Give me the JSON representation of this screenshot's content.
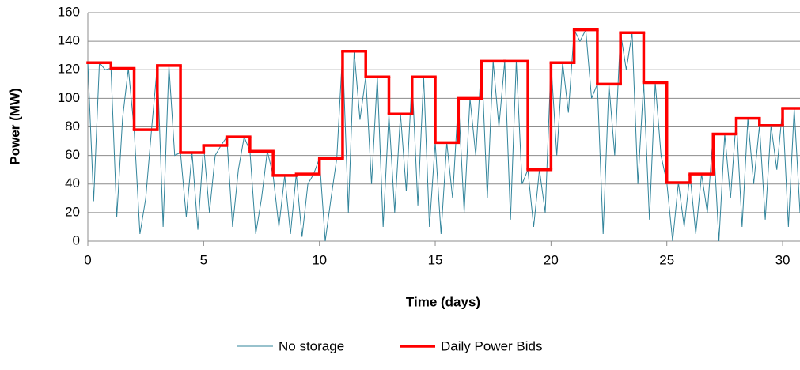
{
  "chart_data": {
    "type": "line",
    "xlabel": "Time (days)",
    "ylabel": "Power (MW)",
    "xlim": [
      0,
      30.75
    ],
    "xticks": [
      0,
      5,
      10,
      15,
      20,
      25,
      30
    ],
    "ylim": [
      0,
      160
    ],
    "yticks": [
      0,
      20,
      40,
      60,
      80,
      100,
      120,
      140,
      160
    ],
    "grid": true,
    "legend": "bottom",
    "series": [
      {
        "name": "No storage",
        "color": "#31849b",
        "x": [
          0,
          0.25,
          0.5,
          0.75,
          1,
          1.25,
          1.5,
          1.75,
          2,
          2.25,
          2.5,
          2.75,
          3,
          3.25,
          3.5,
          3.75,
          4,
          4.25,
          4.5,
          4.75,
          5,
          5.25,
          5.5,
          5.75,
          6,
          6.25,
          6.5,
          6.75,
          7,
          7.25,
          7.5,
          7.75,
          8,
          8.25,
          8.5,
          8.75,
          9,
          9.25,
          9.5,
          9.75,
          10,
          10.25,
          10.5,
          10.75,
          11,
          11.25,
          11.5,
          11.75,
          12,
          12.25,
          12.5,
          12.75,
          13,
          13.25,
          13.5,
          13.75,
          14,
          14.25,
          14.5,
          14.75,
          15,
          15.25,
          15.5,
          15.75,
          16,
          16.25,
          16.5,
          16.75,
          17,
          17.25,
          17.5,
          17.75,
          18,
          18.25,
          18.5,
          18.75,
          19,
          19.25,
          19.5,
          19.75,
          20,
          20.25,
          20.5,
          20.75,
          21,
          21.25,
          21.5,
          21.75,
          22,
          22.25,
          22.5,
          22.75,
          23,
          23.25,
          23.5,
          23.75,
          24,
          24.25,
          24.5,
          24.75,
          25,
          25.25,
          25.5,
          25.75,
          26,
          26.25,
          26.5,
          26.75,
          27,
          27.25,
          27.5,
          27.75,
          28,
          28.25,
          28.5,
          28.75,
          29,
          29.25,
          29.5,
          29.75,
          30,
          30.25,
          30.5,
          30.75
        ],
        "values": [
          125,
          28,
          125,
          120,
          121,
          17,
          86,
          121,
          78,
          5,
          30,
          78,
          123,
          10,
          123,
          60,
          62,
          17,
          62,
          8,
          67,
          20,
          60,
          67,
          73,
          10,
          50,
          73,
          63,
          5,
          30,
          63,
          46,
          10,
          46,
          5,
          47,
          3,
          40,
          47,
          58,
          0,
          30,
          58,
          133,
          20,
          133,
          85,
          115,
          40,
          115,
          10,
          89,
          20,
          89,
          35,
          115,
          25,
          115,
          10,
          69,
          5,
          69,
          30,
          100,
          20,
          100,
          60,
          126,
          30,
          126,
          80,
          126,
          15,
          126,
          40,
          50,
          10,
          50,
          20,
          125,
          60,
          125,
          90,
          148,
          140,
          148,
          100,
          110,
          5,
          110,
          60,
          146,
          120,
          146,
          40,
          111,
          15,
          111,
          60,
          41,
          0,
          41,
          10,
          47,
          5,
          47,
          20,
          75,
          0,
          75,
          30,
          86,
          10,
          86,
          40,
          81,
          15,
          81,
          50,
          93,
          10,
          93,
          20
        ]
      },
      {
        "name": "Daily Power Bids",
        "color": "#ff0000",
        "step": "post",
        "x": [
          0,
          1,
          2,
          3,
          4,
          5,
          6,
          7,
          8,
          9,
          10,
          11,
          12,
          13,
          14,
          15,
          16,
          17,
          18,
          19,
          20,
          21,
          22,
          23,
          24,
          25,
          26,
          27,
          28,
          29,
          30
        ],
        "values": [
          125,
          121,
          78,
          123,
          62,
          67,
          73,
          63,
          46,
          47,
          58,
          133,
          115,
          89,
          115,
          69,
          100,
          126,
          126,
          50,
          125,
          148,
          110,
          146,
          111,
          41,
          47,
          75,
          86,
          81,
          93
        ]
      }
    ]
  }
}
